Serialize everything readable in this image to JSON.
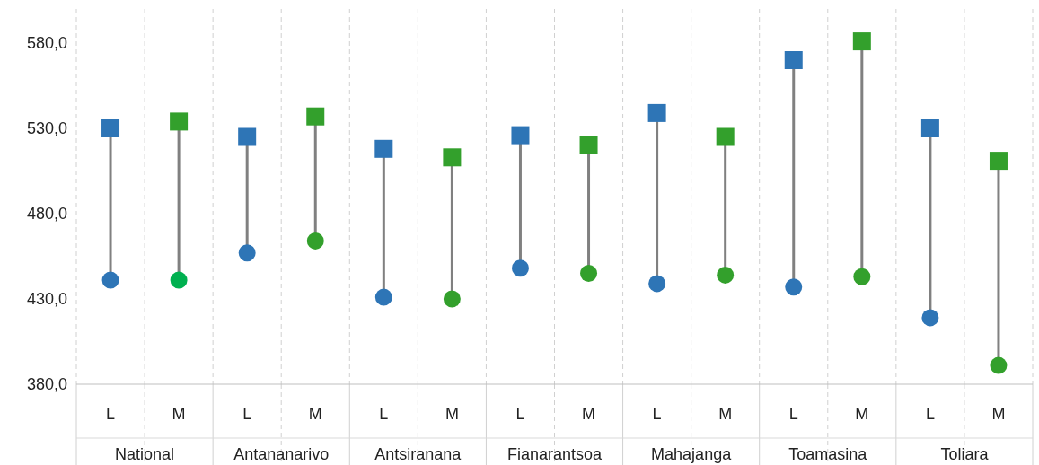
{
  "chart_data": {
    "type": "scatter",
    "categories": [
      "L",
      "M",
      "L",
      "M",
      "L",
      "M",
      "L",
      "M",
      "L",
      "M",
      "L",
      "M",
      "L",
      "M"
    ],
    "annotations": [
      "National",
      "Antananarivo",
      "Antsiranana",
      "Fianarantsoa",
      "Mahajanga",
      "Toamasina",
      "Toliara"
    ],
    "ylim": [
      380,
      600
    ],
    "yticks": [
      {
        "value": 380,
        "label": "380,0"
      },
      {
        "value": 430,
        "label": "430,0"
      },
      {
        "value": 480,
        "label": "480,0"
      },
      {
        "value": 530,
        "label": "530,0"
      },
      {
        "value": 580,
        "label": "580,0"
      }
    ],
    "grid": "x",
    "series": [
      {
        "marker": "square",
        "colors": [
          "#2e75b6",
          "#33a02c",
          "#2e75b6",
          "#33a02c",
          "#2e75b6",
          "#33a02c",
          "#2e75b6",
          "#33a02c",
          "#2e75b6",
          "#33a02c",
          "#2e75b6",
          "#33a02c",
          "#2e75b6",
          "#33a02c"
        ],
        "values": [
          530,
          534,
          525,
          537,
          518,
          513,
          526,
          520,
          539,
          525,
          570,
          581,
          530,
          511
        ]
      },
      {
        "marker": "circle",
        "colors": [
          "#2e75b6",
          "#00b050",
          "#2e75b6",
          "#33a02c",
          "#2e75b6",
          "#33a02c",
          "#2e75b6",
          "#33a02c",
          "#2e75b6",
          "#33a02c",
          "#2e75b6",
          "#33a02c",
          "#2e75b6",
          "#33a02c"
        ],
        "values": [
          441,
          441,
          457,
          464,
          431,
          430,
          448,
          445,
          439,
          444,
          437,
          443,
          419,
          391
        ]
      }
    ]
  }
}
